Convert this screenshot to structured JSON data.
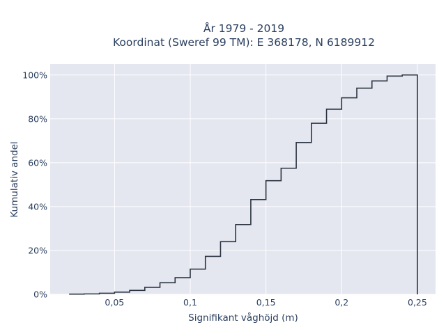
{
  "chart_data": {
    "type": "step",
    "title_line1": "År 1979 - 2019",
    "title_line2": "Koordinat (Sweref 99 TM): E 368178, N 6189912",
    "xlabel": "Signifikant våghöjd (m)",
    "ylabel": "Kumulativ andel",
    "xlim": [
      0.0075,
      0.262
    ],
    "ylim": [
      0,
      1.05
    ],
    "x_ticks": [
      {
        "value": 0.05,
        "label": "0,05"
      },
      {
        "value": 0.1,
        "label": "0,1"
      },
      {
        "value": 0.15,
        "label": "0,15"
      },
      {
        "value": 0.2,
        "label": "0,2"
      },
      {
        "value": 0.25,
        "label": "0,25"
      }
    ],
    "y_ticks": [
      {
        "value": 0,
        "label": "0%"
      },
      {
        "value": 0.2,
        "label": "20%"
      },
      {
        "value": 0.4,
        "label": "40%"
      },
      {
        "value": 0.6,
        "label": "60%"
      },
      {
        "value": 0.8,
        "label": "80%"
      },
      {
        "value": 1.0,
        "label": "100%"
      }
    ],
    "grid": true,
    "line_color": "#2a3440",
    "plot_bg": "#e5e7f0",
    "bins": [
      0.02,
      0.03,
      0.04,
      0.05,
      0.06,
      0.07,
      0.08,
      0.09,
      0.1,
      0.11,
      0.12,
      0.13,
      0.14,
      0.15,
      0.16,
      0.17,
      0.18,
      0.19,
      0.2,
      0.21,
      0.22,
      0.23,
      0.24,
      0.25
    ],
    "cumulative": [
      0.001,
      0.002,
      0.005,
      0.01,
      0.018,
      0.032,
      0.053,
      0.076,
      0.115,
      0.173,
      0.24,
      0.318,
      0.432,
      0.518,
      0.575,
      0.692,
      0.78,
      0.844,
      0.896,
      0.94,
      0.973,
      0.995,
      1.0
    ]
  }
}
